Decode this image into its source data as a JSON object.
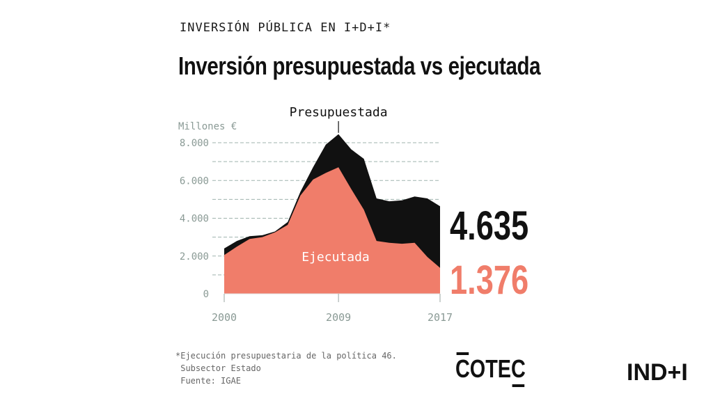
{
  "header": {
    "kicker": "INVERSIÓN PÚBLICA EN I+D+I*",
    "title": "Inversión presupuestada vs ejecutada"
  },
  "chart_data": {
    "type": "area",
    "ylabel": "Millones €",
    "ylim": [
      0,
      8000
    ],
    "yticks": [
      0,
      2000,
      4000,
      6000,
      8000
    ],
    "ytick_labels": [
      "0",
      "2.000",
      "4.000",
      "6.000",
      "8.000"
    ],
    "xlim": [
      2000,
      2017
    ],
    "xticks": [
      2000,
      2009,
      2017
    ],
    "xtick_labels": [
      "2000",
      "2009",
      "2017"
    ],
    "grid": true,
    "x": [
      2000,
      2001,
      2002,
      2003,
      2004,
      2005,
      2006,
      2007,
      2008,
      2009,
      2010,
      2011,
      2012,
      2013,
      2014,
      2015,
      2016,
      2017
    ],
    "series": [
      {
        "name": "Presupuestada",
        "color": "#111111",
        "values": [
          2400,
          2800,
          3050,
          3100,
          3300,
          3800,
          5400,
          6700,
          7900,
          8450,
          7650,
          7150,
          5050,
          4900,
          4950,
          5150,
          5050,
          4635
        ]
      },
      {
        "name": "Ejecutada",
        "color": "#f07d6a",
        "values": [
          2050,
          2500,
          2900,
          3000,
          3250,
          3650,
          5200,
          6050,
          6400,
          6700,
          5550,
          4450,
          2800,
          2700,
          2650,
          2700,
          1950,
          1376
        ]
      }
    ],
    "end_labels": {
      "Presupuestada": "4.635",
      "Ejecutada": "1.376"
    }
  },
  "footnote": {
    "line1": "*Ejecución presupuestaria de la política 46.",
    "line2": " Subsector Estado",
    "line3": " Fuente: IGAE"
  },
  "logos": {
    "cotec": "COTEC",
    "indi": "IND+I"
  }
}
